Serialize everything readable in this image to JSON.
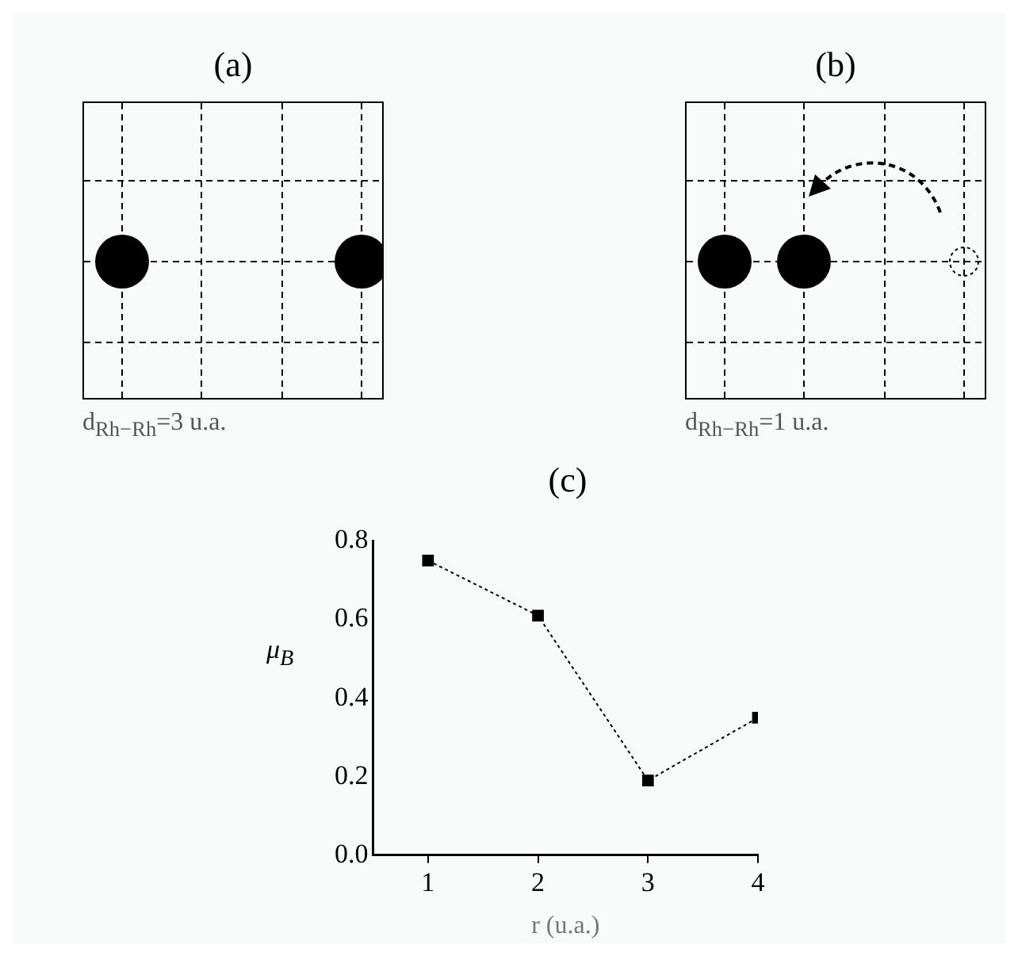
{
  "chart_data": [
    {
      "type": "other",
      "title": "(a)",
      "annotations": [
        "d$_{Rh−Rh}$=3 u.a."
      ]
    },
    {
      "type": "other",
      "title": "(b)",
      "annotations": [
        "d$_{Rh−Rh}$=1 u.a."
      ]
    },
    {
      "type": "line",
      "title": "(c)",
      "xlabel": "r (u.a.)",
      "ylabel": "μ$_{B}$",
      "x": [
        1,
        2,
        3,
        4
      ],
      "series": [
        {
          "color": "#000000",
          "values": [
            0.75,
            0.61,
            0.19,
            0.35
          ]
        }
      ],
      "xlim": [
        0.5,
        4
      ],
      "xticks": [
        1,
        2,
        3,
        4
      ],
      "ylim": [
        0,
        0.8
      ],
      "yticks": [
        {
          "value": 0,
          "label": "0.0"
        },
        {
          "value": 0.2,
          "label": "0.2"
        },
        {
          "value": 0.4,
          "label": "0.4"
        },
        {
          "value": 0.6,
          "label": "0.6"
        },
        {
          "value": 0.8,
          "label": "0.8"
        }
      ],
      "marker": "square",
      "line_style": "dotted",
      "grid": false,
      "legend": false
    }
  ]
}
